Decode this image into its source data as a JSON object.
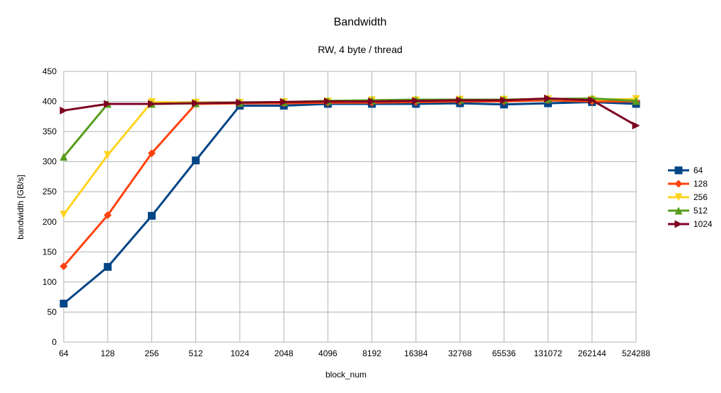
{
  "chart_data": {
    "type": "line",
    "title": "Bandwidth",
    "subtitle": "RW, 4 byte / thread",
    "xlabel": "block_num",
    "ylabel": "bandwidth [GB/s]",
    "categories": [
      "64",
      "128",
      "256",
      "512",
      "1024",
      "2048",
      "4096",
      "8192",
      "16384",
      "32768",
      "65536",
      "131072",
      "262144",
      "524288"
    ],
    "ylim": [
      0,
      450
    ],
    "yticks": [
      0,
      50,
      100,
      150,
      200,
      250,
      300,
      350,
      400,
      450
    ],
    "grid": true,
    "legend_position": "right",
    "series": [
      {
        "name": "64",
        "color": "#004586",
        "marker": "square",
        "values": [
          64,
          125,
          210,
          302,
          393,
          393,
          396,
          396,
          396,
          397,
          395,
          397,
          399,
          396
        ]
      },
      {
        "name": "128",
        "color": "#ff420e",
        "marker": "diamond",
        "values": [
          126,
          211,
          314,
          396,
          397,
          397,
          398,
          398,
          399,
          400,
          400,
          402,
          400,
          400
        ]
      },
      {
        "name": "256",
        "color": "#ffd320",
        "marker": "triangle-down",
        "values": [
          212,
          311,
          399,
          398,
          398,
          399,
          400,
          402,
          402,
          403,
          403,
          404,
          403,
          404
        ]
      },
      {
        "name": "512",
        "color": "#579d1c",
        "marker": "triangle-up",
        "values": [
          308,
          396,
          396,
          397,
          398,
          399,
          401,
          402,
          403,
          403,
          403,
          404,
          405,
          401
        ]
      },
      {
        "name": "1024",
        "color": "#7e0021",
        "marker": "triangle-right",
        "values": [
          385,
          396,
          396,
          397,
          398,
          399,
          400,
          400,
          401,
          402,
          402,
          405,
          402,
          360
        ]
      }
    ]
  }
}
